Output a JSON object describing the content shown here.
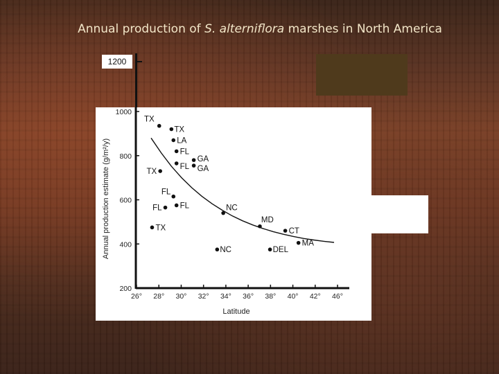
{
  "title": {
    "prefix": "Annual production of ",
    "species": "S. alterniflora",
    "suffix": " marshes in North America"
  },
  "colors": {
    "background": "#5a3222",
    "title_text": "#f2e6c8",
    "dark_box": "#4f3a1c"
  },
  "chart_data": {
    "type": "scatter",
    "xlabel": "Latitude",
    "ylabel": "Annual production estimate (g/m²/y)",
    "xlim": [
      26,
      47
    ],
    "ylim": [
      200,
      1000
    ],
    "x_ticks": [
      "26°",
      "28°",
      "30°",
      "32°",
      "34°",
      "36°",
      "38°",
      "40°",
      "42°",
      "46°"
    ],
    "y_ticks": [
      "200",
      "400",
      "600",
      "800",
      "1000"
    ],
    "extra_y_tick_label": "1200",
    "grid": false,
    "points": [
      {
        "label": "TX",
        "x": 28.3,
        "y": 935
      },
      {
        "label": "TX",
        "x": 29.5,
        "y": 920
      },
      {
        "label": "LA",
        "x": 29.7,
        "y": 870
      },
      {
        "label": "FL",
        "x": 30.0,
        "y": 820
      },
      {
        "label": "GA",
        "x": 31.7,
        "y": 780
      },
      {
        "label": "GA",
        "x": 31.7,
        "y": 755
      },
      {
        "label": "FL",
        "x": 30.0,
        "y": 765
      },
      {
        "label": "TX",
        "x": 28.4,
        "y": 730
      },
      {
        "label": "FL",
        "x": 29.7,
        "y": 615
      },
      {
        "label": "FL",
        "x": 28.9,
        "y": 565
      },
      {
        "label": "FL",
        "x": 30.0,
        "y": 575
      },
      {
        "label": "NC",
        "x": 34.6,
        "y": 540
      },
      {
        "label": "TX",
        "x": 27.6,
        "y": 475
      },
      {
        "label": "MD",
        "x": 38.2,
        "y": 480
      },
      {
        "label": "CT",
        "x": 40.7,
        "y": 460
      },
      {
        "label": "MA",
        "x": 42.0,
        "y": 405
      },
      {
        "label": "NC",
        "x": 34.0,
        "y": 375
      },
      {
        "label": "DEL",
        "x": 39.2,
        "y": 375
      }
    ],
    "trend_curve": {
      "x": [
        27.5,
        28.5,
        29.5,
        30.5,
        31.5,
        32.5,
        33.5,
        34.5,
        35.5,
        36.5,
        37.5,
        38.5,
        39.5,
        40.5,
        41.5,
        42.5,
        43.5,
        44.5,
        45.5
      ],
      "y": [
        880,
        812,
        752,
        700,
        655,
        616,
        582,
        553,
        527,
        505,
        486,
        470,
        456,
        444,
        434,
        425,
        418,
        412,
        407
      ]
    }
  }
}
